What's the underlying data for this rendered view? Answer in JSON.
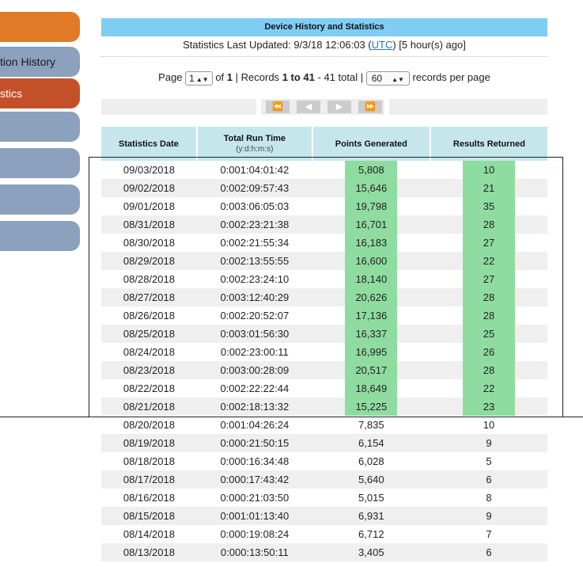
{
  "sidebar": {
    "items": [
      {
        "label": "",
        "style": "orange"
      },
      {
        "label": "tion History",
        "style": "blue"
      },
      {
        "label": "stics",
        "style": "red"
      },
      {
        "label": "",
        "style": "blue"
      },
      {
        "label": "",
        "style": "blue"
      },
      {
        "label": "",
        "style": "blue"
      },
      {
        "label": "",
        "style": "blue"
      }
    ]
  },
  "header": {
    "title": "Device History and Statistics",
    "updated_prefix": "Statistics Last Updated: 9/3/18 12:06:03 (",
    "updated_link": "UTC",
    "updated_suffix": ") [5 hour(s) ago]"
  },
  "paging": {
    "page_label": "Page",
    "page_value": "1",
    "of_label": "of",
    "total_pages": "1",
    "records_label": "| Records",
    "records_range": "1 to 41",
    "records_total": "- 41 total  |",
    "per_page_value": "60",
    "per_page_label": "records per page"
  },
  "pager_buttons": {
    "first": "⏪",
    "prev": "◀",
    "next": "▶",
    "last": "⏩"
  },
  "table": {
    "headers": {
      "date": "Statistics Date",
      "run": "Total Run Time",
      "run_sub": "(y:d:h:m:s)",
      "points": "Points Generated",
      "results": "Results Returned"
    },
    "rows": [
      {
        "date": "09/03/2018",
        "run": "0:001:04:01:42",
        "points": "5,808",
        "results": "10",
        "hl": true
      },
      {
        "date": "09/02/2018",
        "run": "0:002:09:57:43",
        "points": "15,646",
        "results": "21",
        "hl": true
      },
      {
        "date": "09/01/2018",
        "run": "0:003:06:05:03",
        "points": "19,798",
        "results": "35",
        "hl": true
      },
      {
        "date": "08/31/2018",
        "run": "0:002:23:21:38",
        "points": "16,701",
        "results": "28",
        "hl": true
      },
      {
        "date": "08/30/2018",
        "run": "0:002:21:55:34",
        "points": "16,183",
        "results": "27",
        "hl": true
      },
      {
        "date": "08/29/2018",
        "run": "0:002:13:55:55",
        "points": "16,600",
        "results": "22",
        "hl": true
      },
      {
        "date": "08/28/2018",
        "run": "0:002:23:24:10",
        "points": "18,140",
        "results": "27",
        "hl": true
      },
      {
        "date": "08/27/2018",
        "run": "0:003:12:40:29",
        "points": "20,626",
        "results": "28",
        "hl": true
      },
      {
        "date": "08/26/2018",
        "run": "0:002:20:52:07",
        "points": "17,136",
        "results": "28",
        "hl": true
      },
      {
        "date": "08/25/2018",
        "run": "0:003:01:56:30",
        "points": "16,337",
        "results": "25",
        "hl": true
      },
      {
        "date": "08/24/2018",
        "run": "0:002:23:00:11",
        "points": "16,995",
        "results": "26",
        "hl": true
      },
      {
        "date": "08/23/2018",
        "run": "0:003:00:28:09",
        "points": "20,517",
        "results": "28",
        "hl": true
      },
      {
        "date": "08/22/2018",
        "run": "0:002:22:22:44",
        "points": "18,649",
        "results": "22",
        "hl": true
      },
      {
        "date": "08/21/2018",
        "run": "0:002:18:13:32",
        "points": "15,225",
        "results": "23",
        "hl": true
      },
      {
        "date": "08/20/2018",
        "run": "0:001:04:26:24",
        "points": "7,835",
        "results": "10",
        "hl": false
      },
      {
        "date": "08/19/2018",
        "run": "0:000:21:50:15",
        "points": "6,154",
        "results": "9",
        "hl": false
      },
      {
        "date": "08/18/2018",
        "run": "0:000:16:34:48",
        "points": "6,028",
        "results": "5",
        "hl": false
      },
      {
        "date": "08/17/2018",
        "run": "0:000:17:43:42",
        "points": "5,640",
        "results": "6",
        "hl": false
      },
      {
        "date": "08/16/2018",
        "run": "0:000:21:03:50",
        "points": "5,015",
        "results": "8",
        "hl": false
      },
      {
        "date": "08/15/2018",
        "run": "0:001:01:13:40",
        "points": "6,931",
        "results": "9",
        "hl": false
      },
      {
        "date": "08/14/2018",
        "run": "0:000:19:08:24",
        "points": "6,712",
        "results": "7",
        "hl": false
      },
      {
        "date": "08/13/2018",
        "run": "0:000:13:50:11",
        "points": "3,405",
        "results": "6",
        "hl": false
      }
    ]
  },
  "colors": {
    "title_bar": "#7fcdf4",
    "header_bg": "#c5e7ec",
    "highlight": "#8fdca0",
    "nav_orange": "#e07a26",
    "nav_blue": "#8ba1bd",
    "nav_red": "#c4502a"
  }
}
